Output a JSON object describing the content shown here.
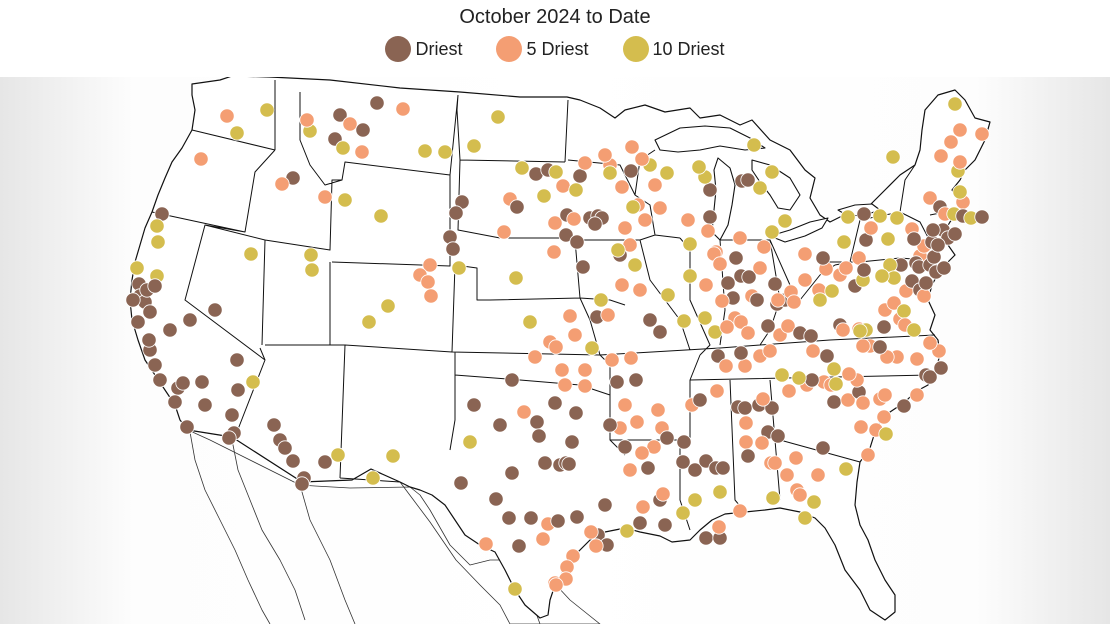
{
  "title": "October 2024 to Date",
  "legend": [
    {
      "key": "d1",
      "label": "Driest",
      "color": "#8a6453"
    },
    {
      "key": "d5",
      "label": "5 Driest",
      "color": "#f49e73"
    },
    {
      "key": "d10",
      "label": "10 Driest",
      "color": "#d4bd4e"
    }
  ],
  "map": {
    "region": "Contiguous United States",
    "features": [
      "state boundaries",
      "coastline",
      "Great Lakes",
      "Mexico border",
      "Canada border"
    ],
    "background_color": "#ffffff",
    "boundary_color": "#111111"
  }
}
